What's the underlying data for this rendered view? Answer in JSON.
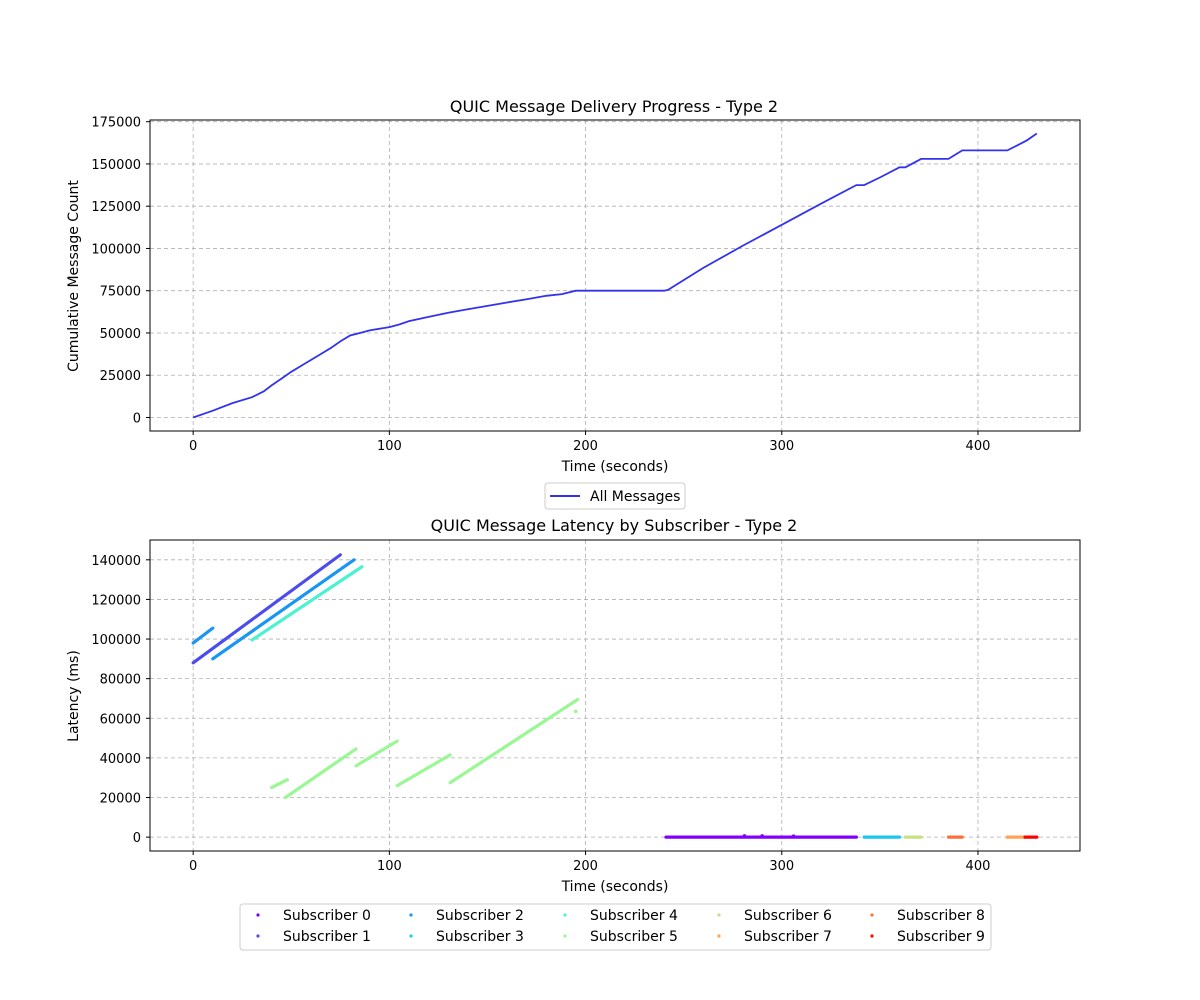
{
  "chart_data": [
    {
      "type": "line",
      "title": "QUIC Message Delivery Progress - Type 2",
      "xlabel": "Time (seconds)",
      "ylabel": "Cumulative Message Count",
      "xlim": [
        -22,
        452
      ],
      "ylim": [
        -8000,
        176000
      ],
      "xticks": [
        0,
        100,
        200,
        300,
        400
      ],
      "yticks": [
        0,
        25000,
        50000,
        75000,
        100000,
        125000,
        150000,
        175000
      ],
      "grid": true,
      "legend_position": "below",
      "series": [
        {
          "name": "All Messages",
          "color": "#3333ee",
          "x": [
            0,
            10,
            20,
            30,
            36,
            40,
            45,
            50,
            55,
            60,
            65,
            70,
            75,
            80,
            85,
            90,
            100,
            105,
            110,
            120,
            130,
            135,
            140,
            150,
            160,
            170,
            180,
            188,
            195,
            200,
            210,
            220,
            230,
            240,
            242,
            260,
            280,
            300,
            320,
            338,
            342,
            350,
            360,
            363,
            371,
            376,
            385,
            392,
            396,
            405,
            415,
            420,
            425,
            430
          ],
          "y": [
            0,
            4000,
            8500,
            12000,
            15500,
            19000,
            23000,
            27000,
            30500,
            34000,
            37500,
            41000,
            45000,
            48500,
            50000,
            51500,
            53500,
            55000,
            57000,
            59500,
            62000,
            63000,
            64000,
            66000,
            68000,
            70000,
            72000,
            73000,
            75000,
            75000,
            75000,
            75000,
            75000,
            75000,
            75500,
            88500,
            101500,
            114000,
            126500,
            137500,
            137500,
            142000,
            148000,
            148000,
            153000,
            153000,
            153000,
            158000,
            158000,
            158000,
            158000,
            161000,
            164000,
            168000
          ]
        }
      ]
    },
    {
      "type": "scatter",
      "title": "QUIC Message Latency by Subscriber - Type 2",
      "xlabel": "Time (seconds)",
      "ylabel": "Latency (ms)",
      "xlim": [
        -22,
        452
      ],
      "ylim": [
        -7000,
        150000
      ],
      "xticks": [
        0,
        100,
        200,
        300,
        400
      ],
      "yticks": [
        0,
        20000,
        40000,
        60000,
        80000,
        100000,
        120000,
        140000
      ],
      "grid": true,
      "legend_position": "below",
      "series": [
        {
          "name": "Subscriber 0",
          "color": "#8000ff",
          "segments": [
            [
              [
                241,
                0
              ],
              [
                338,
                0
              ]
            ]
          ],
          "extra_points": [
            [
              281,
              600
            ],
            [
              290,
              600
            ],
            [
              306,
              500
            ]
          ]
        },
        {
          "name": "Subscriber 1",
          "color": "#4c4cee",
          "segments": [
            [
              [
                0,
                88000
              ],
              [
                75,
                142500
              ]
            ]
          ],
          "extra_points": []
        },
        {
          "name": "Subscriber 2",
          "color": "#1996f3",
          "segments": [
            [
              [
                0,
                98000
              ],
              [
                10,
                105500
              ]
            ],
            [
              [
                10,
                90000
              ],
              [
                82,
                140000
              ]
            ]
          ],
          "extra_points": []
        },
        {
          "name": "Subscriber 3",
          "color": "#1ac7ec",
          "segments": [
            [
              [
                342,
                0
              ],
              [
                360,
                0
              ]
            ]
          ],
          "extra_points": []
        },
        {
          "name": "Subscriber 4",
          "color": "#4cf2ce",
          "segments": [
            [
              [
                30,
                99500
              ],
              [
                86,
                136500
              ]
            ]
          ],
          "extra_points": []
        },
        {
          "name": "Subscriber 5",
          "color": "#99f893",
          "segments": [
            [
              [
                40,
                25000
              ],
              [
                48,
                29000
              ]
            ],
            [
              [
                47,
                20000
              ],
              [
                83,
                44500
              ]
            ],
            [
              [
                83,
                36000
              ],
              [
                104,
                48500
              ]
            ],
            [
              [
                104,
                26000
              ],
              [
                131,
                41500
              ]
            ],
            [
              [
                131,
                27500
              ],
              [
                196,
                69500
              ]
            ]
          ],
          "extra_points": [
            [
              195,
              63500
            ]
          ]
        },
        {
          "name": "Subscriber 6",
          "color": "#c7e080",
          "segments": [
            [
              [
                363,
                0
              ],
              [
                371,
                0
              ]
            ]
          ],
          "extra_points": []
        },
        {
          "name": "Subscriber 7",
          "color": "#ffa256",
          "segments": [
            [
              [
                415,
                0
              ],
              [
                424,
                0
              ]
            ]
          ],
          "extra_points": []
        },
        {
          "name": "Subscriber 8",
          "color": "#ff6e38",
          "segments": [
            [
              [
                385,
                0
              ],
              [
                392,
                0
              ]
            ]
          ],
          "extra_points": []
        },
        {
          "name": "Subscriber 9",
          "color": "#ff0000",
          "segments": [
            [
              [
                424,
                0
              ],
              [
                430,
                0
              ]
            ]
          ],
          "extra_points": []
        }
      ]
    }
  ]
}
